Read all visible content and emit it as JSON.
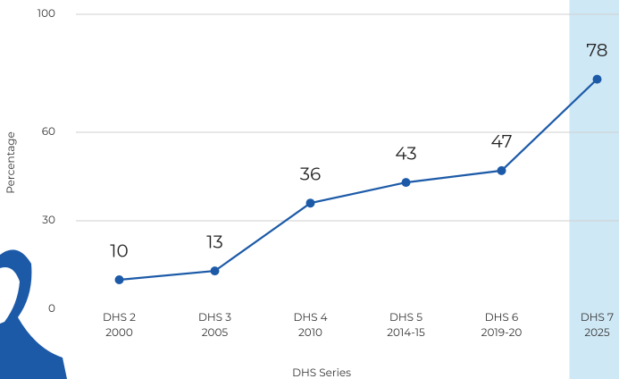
{
  "chart_data": {
    "type": "line",
    "x_label": "DHS Series",
    "y_label": "Percentage",
    "categories": [
      [
        "DHS 2",
        "2000"
      ],
      [
        "DHS 3",
        "2005"
      ],
      [
        "DHS 4",
        "2010"
      ],
      [
        "DHS 5",
        "2014-15"
      ],
      [
        "DHS 6",
        "2019-20"
      ],
      [
        "DHS 7",
        "2025"
      ]
    ],
    "series": [
      {
        "color": "#1c5aa8",
        "values": [
          10,
          13,
          36,
          43,
          47,
          78
        ]
      }
    ],
    "ylim": [
      0,
      100
    ],
    "yticks": [
      0,
      30,
      60,
      100
    ],
    "grid": true,
    "highlight_category": 5,
    "highlight_color": "#cfe8f5"
  }
}
